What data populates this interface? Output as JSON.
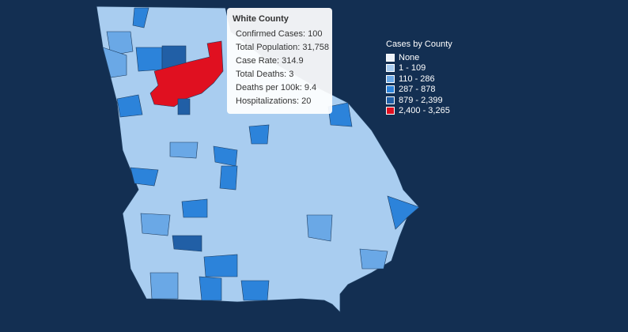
{
  "tooltip": {
    "title": "White County",
    "rows": [
      "Confirmed Cases: 100",
      "Total Population: 31,758",
      "Case Rate: 314.9",
      "Total Deaths: 3",
      "Deaths per 100k: 9.4",
      "Hospitalizations: 20"
    ]
  },
  "legend": {
    "title": "Cases by County",
    "items": [
      {
        "label": "None",
        "color": "#eef4fb"
      },
      {
        "label": "1 - 109",
        "color": "#a9cdf0"
      },
      {
        "label": "110 - 286",
        "color": "#6aa8e6"
      },
      {
        "label": "287 - 878",
        "color": "#2c83da"
      },
      {
        "label": "879 - 2,399",
        "color": "#215fa6"
      },
      {
        "label": "2,400 - 3,265",
        "color": "#e01020"
      }
    ]
  }
}
